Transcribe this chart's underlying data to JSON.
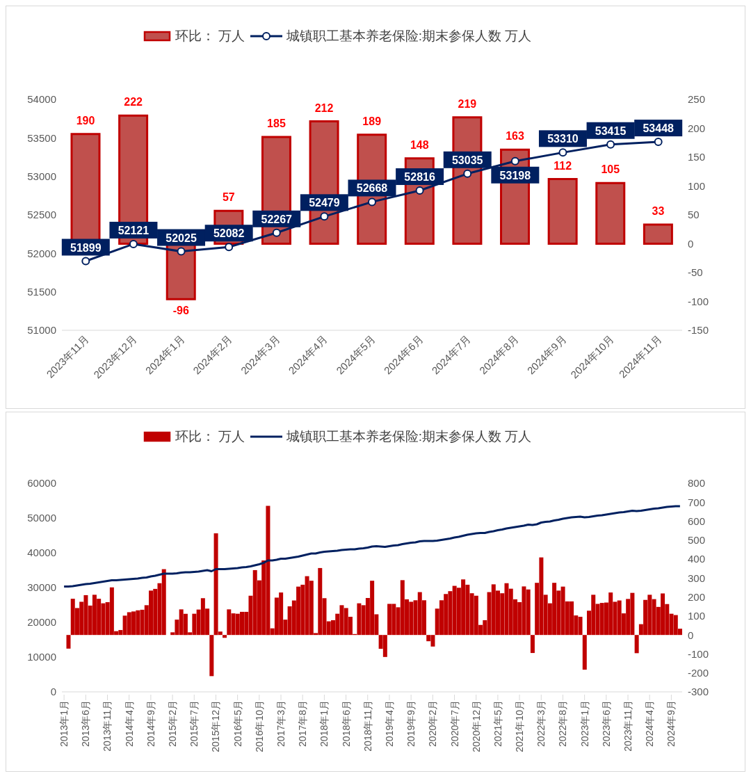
{
  "chart_data": [
    {
      "type": "bar",
      "categories": [
        "2023年11月",
        "2023年12月",
        "2024年1月",
        "2024年2月",
        "2024年3月",
        "2024年4月",
        "2024年5月",
        "2024年6月",
        "2024年7月",
        "2024年8月",
        "2024年9月",
        "2024年10月",
        "2024年11月"
      ],
      "series": [
        {
          "name": "环比： 万人",
          "axis": "y2",
          "color": "#c0504d",
          "values": [
            190,
            222,
            -96,
            57,
            185,
            212,
            189,
            148,
            219,
            163,
            112,
            105,
            33
          ]
        },
        {
          "name": "城镇职工基本养老保险:期末参保人数 万人",
          "type": "line",
          "marker": "circle",
          "color": "#002060",
          "values": [
            51899,
            52121,
            52025,
            52082,
            52267,
            52479,
            52668,
            52816,
            53035,
            53198,
            53310,
            53415,
            53448
          ]
        }
      ],
      "ylim": [
        51000,
        54000
      ],
      "yticks": [
        51000,
        51500,
        52000,
        52500,
        53000,
        53500,
        54000
      ],
      "y2lim": [
        -150,
        250
      ],
      "y2ticks": [
        -150,
        -100,
        -50,
        0,
        50,
        100,
        150,
        200,
        250
      ],
      "data_labels": true,
      "legend": "top",
      "grid": false
    },
    {
      "type": "bar",
      "categories": [
        "2013年1月",
        null,
        null,
        null,
        null,
        "2013年6月",
        null,
        null,
        null,
        null,
        "2013年11月",
        null,
        null,
        null,
        null,
        "2014年4月",
        null,
        null,
        null,
        null,
        "2014年9月",
        null,
        null,
        null,
        null,
        "2015年2月",
        null,
        null,
        null,
        null,
        "2015年7月",
        null,
        null,
        null,
        null,
        "2015年12月",
        null,
        null,
        null,
        null,
        "2016年5月",
        null,
        null,
        null,
        null,
        "2016年10月",
        null,
        null,
        null,
        null,
        "2017年3月",
        null,
        null,
        null,
        null,
        "2017年8月",
        null,
        null,
        null,
        null,
        "2018年1月",
        null,
        null,
        null,
        null,
        "2018年6月",
        null,
        null,
        null,
        null,
        "2018年11月",
        null,
        null,
        null,
        null,
        "2019年4月",
        null,
        null,
        null,
        null,
        "2019年9月",
        null,
        null,
        null,
        null,
        "2020年2月",
        null,
        null,
        null,
        null,
        "2020年7月",
        null,
        null,
        null,
        null,
        "2020年12月",
        null,
        null,
        null,
        null,
        "2021年5月",
        null,
        null,
        null,
        null,
        "2021年10月",
        null,
        null,
        null,
        null,
        "2022年3月",
        null,
        null,
        null,
        null,
        "2022年8月",
        null,
        null,
        null,
        null,
        "2023年1月",
        null,
        null,
        null,
        null,
        "2023年6月",
        null,
        null,
        null,
        null,
        "2023年11月",
        null,
        null,
        null,
        null,
        "2024年4月",
        null,
        null,
        null,
        null,
        "2024年9月",
        null,
        null
      ],
      "series": [
        {
          "name": "环比： 万人",
          "axis": "y2",
          "color": "#c00000",
          "values": [
            null,
            -72,
            191,
            142,
            175,
            210,
            155,
            212,
            191,
            167,
            173,
            251,
            20,
            26,
            102,
            120,
            124,
            130,
            133,
            157,
            234,
            243,
            273,
            347,
            null,
            14,
            81,
            135,
            112,
            14,
            112,
            134,
            194,
            139,
            -217,
            536,
            18,
            -15,
            135,
            114,
            112,
            122,
            122,
            207,
            342,
            288,
            393,
            681,
            35,
            197,
            224,
            81,
            151,
            182,
            255,
            265,
            310,
            286,
            10,
            353,
            194,
            72,
            78,
            112,
            157,
            142,
            96,
            5,
            167,
            157,
            195,
            286,
            109,
            -73,
            -116,
            164,
            164,
            146,
            289,
            188,
            175,
            183,
            226,
            183,
            -33,
            -61,
            139,
            183,
            216,
            231,
            259,
            249,
            293,
            265,
            220,
            207,
            53,
            78,
            226,
            267,
            234,
            220,
            273,
            244,
            188,
            173,
            256,
            240,
            -95,
            275,
            409,
            212,
            167,
            275,
            234,
            255,
            177,
            177,
            103,
            96,
            -183,
            128,
            212,
            164,
            169,
            171,
            224,
            175,
            182,
            114,
            190,
            222,
            -96,
            57,
            185,
            212,
            189,
            148,
            219,
            163,
            112,
            105,
            33
          ]
        },
        {
          "name": "城镇职工基本养老保险:期末参保人数 万人",
          "type": "line",
          "color": "#002060",
          "values": [
            30300,
            30300,
            30400,
            30600,
            30800,
            31000,
            31100,
            31300,
            31500,
            31700,
            31900,
            32100,
            32100,
            32200,
            32300,
            32400,
            32500,
            32600,
            32800,
            32900,
            33200,
            33400,
            33700,
            34000,
            34000,
            34000,
            34100,
            34300,
            34400,
            34400,
            34500,
            34600,
            34800,
            35000,
            34700,
            35300,
            35300,
            35300,
            35400,
            35500,
            35600,
            35800,
            35900,
            36100,
            36400,
            36700,
            37100,
            37800,
            37800,
            38000,
            38300,
            38300,
            38500,
            38700,
            38900,
            39200,
            39500,
            39800,
            39800,
            40100,
            40300,
            40400,
            40500,
            40600,
            40800,
            40900,
            41000,
            41000,
            41200,
            41300,
            41500,
            41800,
            41900,
            41800,
            41700,
            41900,
            42100,
            42200,
            42500,
            42700,
            42900,
            43000,
            43300,
            43400,
            43400,
            43400,
            43500,
            43700,
            43900,
            44100,
            44400,
            44600,
            44900,
            45200,
            45400,
            45600,
            45700,
            45700,
            46000,
            46200,
            46500,
            46700,
            47000,
            47200,
            47400,
            47600,
            47800,
            48100,
            48000,
            48200,
            48700,
            48900,
            49000,
            49300,
            49500,
            49800,
            50000,
            50200,
            50300,
            50400,
            50200,
            50300,
            50500,
            50700,
            50800,
            51000,
            51200,
            51400,
            51600,
            51700,
            51900,
            52100,
            52000,
            52100,
            52300,
            52500,
            52700,
            52800,
            53000,
            53200,
            53300,
            53400,
            53400
          ]
        }
      ],
      "ylim": [
        0,
        60000
      ],
      "yticks": [
        0,
        10000,
        20000,
        30000,
        40000,
        50000,
        60000
      ],
      "y2lim": [
        -300,
        800
      ],
      "y2ticks": [
        -300,
        -200,
        -100,
        0,
        100,
        200,
        300,
        400,
        500,
        600,
        700,
        800
      ],
      "legend": "top",
      "grid": false
    }
  ]
}
